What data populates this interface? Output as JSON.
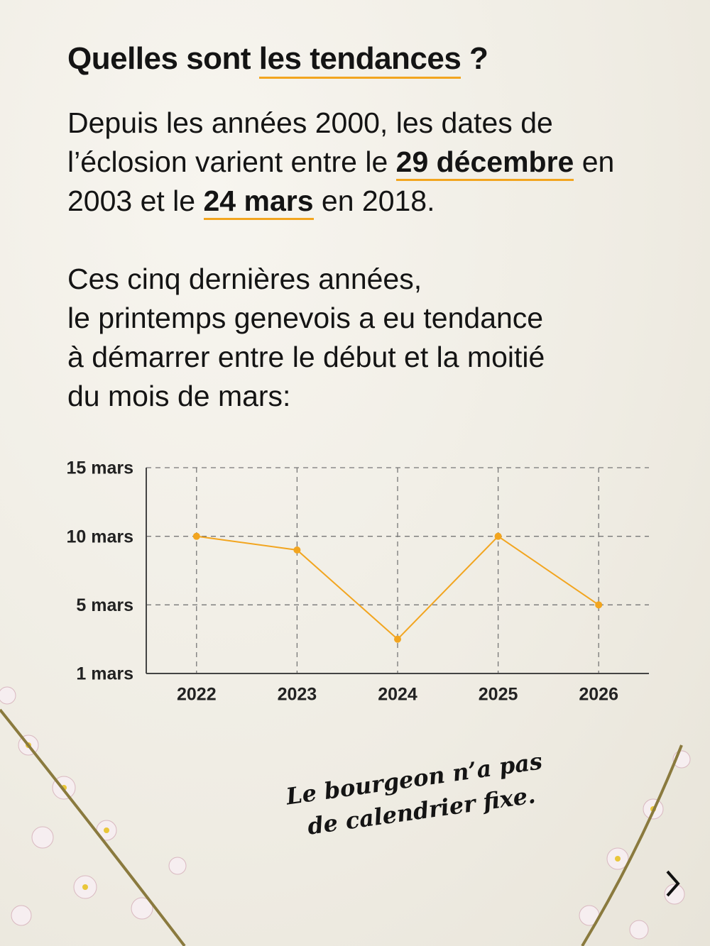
{
  "header": {
    "title_start": "Quelles sont ",
    "title_highlight": "les tendances",
    "title_end": " ?"
  },
  "intro": [
    "Depuis les années 2000, les dates de l’éclosion varient entre le ",
    "29 décembre",
    " en 2003 et le ",
    "24 mars",
    " en 2018."
  ],
  "trend_text": [
    "Ces cinq dernières années,",
    "le printemps genevois a eu tendance",
    "à démarrer entre le début et la moitié",
    "du mois de mars:"
  ],
  "chart_data": {
    "type": "line",
    "categories": [
      "2022",
      "2023",
      "2024",
      "2025",
      "2026"
    ],
    "series": [
      {
        "color": "#f2a51f",
        "values": [
          10,
          9,
          3,
          10,
          5
        ]
      }
    ],
    "ylim": [
      1,
      15
    ],
    "yticks": [
      {
        "value": 1,
        "label": "1 mars"
      },
      {
        "value": 5,
        "label": "5 mars"
      },
      {
        "value": 10,
        "label": "10 mars"
      },
      {
        "value": 15,
        "label": "15 mars"
      }
    ],
    "grid": true
  },
  "note": [
    "Le bourgeon n’a pas",
    "de calendrier fixe."
  ]
}
